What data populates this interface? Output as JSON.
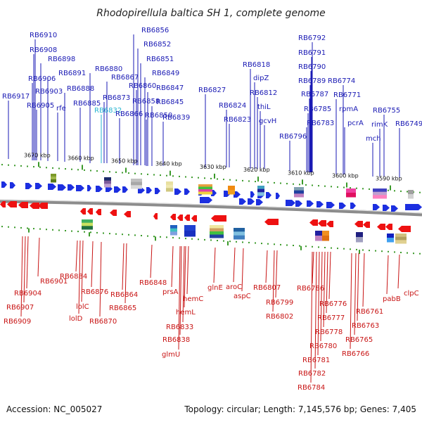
{
  "title": "Rhodopirellula baltica SH 1, complete genome",
  "footer": {
    "accession": "Accession: NC_005027",
    "topology": "Topology: circular; Length: 7,145,576 bp; Genes: 7,405"
  },
  "colors": {
    "forward": "#1c2fe0",
    "reverse": "#ee1111",
    "top_label": "#1a1ab4",
    "bottom_label": "#c81414",
    "highlight_label": "#27b4d0",
    "tick": "#3b9a2a",
    "backbone": "#555555"
  },
  "scale_ticks": [
    "3670 kbp",
    "3660 kbp",
    "3650 kbp",
    "3640 kbp",
    "3630 kbp",
    "3620 kbp",
    "3610 kbp",
    "3600 kbp",
    "3590 kbp"
  ],
  "top_labels": [
    "RB6910",
    "RB6908",
    "RB6898",
    "RB6906",
    "RB6891",
    "RB6917",
    "RB6903",
    "RB6888",
    "RB6905",
    "rfe",
    "RB6885",
    "RB6880",
    "RB6867",
    "RB6873",
    "RB6832",
    "RB6866",
    "RB6856",
    "RB6852",
    "RB6851",
    "RB6849",
    "RB6860",
    "RB6847",
    "RB6858",
    "RB6845",
    "RB6850",
    "RB6839",
    "RB6827",
    "RB6824",
    "RB6823",
    "RB6818",
    "dipZ",
    "RB6812",
    "thiL",
    "gcvH",
    "RB6796",
    "RB6792",
    "RB6791",
    "RB6790",
    "RB6789",
    "RB6787",
    "RB6785",
    "RB6783",
    "RB6774",
    "RB6771",
    "rpmA",
    "pcrA",
    "RB6755",
    "rimK",
    "mch",
    "RB6749"
  ],
  "bottom_labels": [
    "RB6901",
    "RB6904",
    "RB6907",
    "RB6909",
    "RB6884",
    "lolC",
    "lolD",
    "RB6876",
    "RB6870",
    "RB6864",
    "RB6865",
    "RB6848",
    "prsA",
    "hemC",
    "hemL",
    "RB6833",
    "RB6838",
    "glmU",
    "glnE",
    "aroC",
    "aspC",
    "RB6807",
    "RB6799",
    "RB6802",
    "RB6786",
    "RB6776",
    "RB6777",
    "RB6778",
    "RB6780",
    "RB6781",
    "RB6782",
    "RB6784",
    "RB6761",
    "RB6763",
    "RB6765",
    "RB6766",
    "pabB",
    "clpC"
  ]
}
